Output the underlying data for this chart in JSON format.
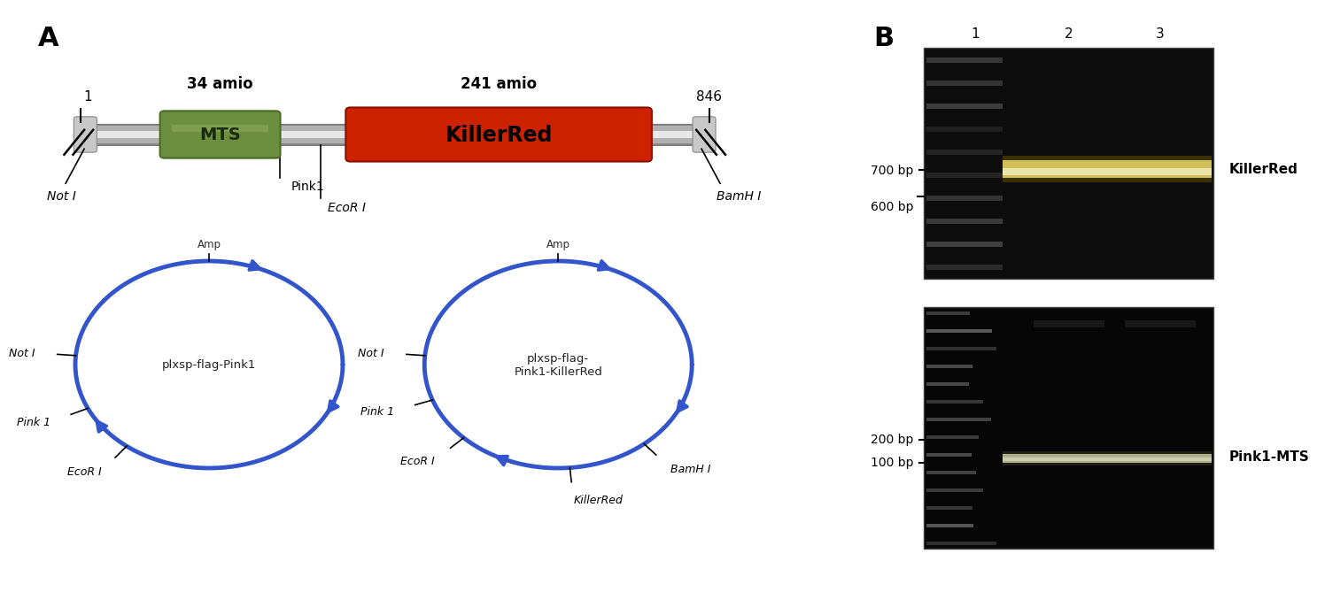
{
  "panel_A_label": "A",
  "panel_B_label": "B",
  "linear_diagram": {
    "MTS_label": "MTS",
    "KillerRed_label": "KillerRed",
    "MTS_color": "#6b8f3e",
    "MTS_edge_color": "#4a6b28",
    "KillerRed_color": "#cc2200",
    "KillerRed_edge_color": "#881100",
    "rod_color_light": "#e0e0e0",
    "rod_color_mid": "#ffffff",
    "rod_color_dark": "#aaaaaa"
  },
  "plasmid_left": {
    "label": "plxsp-flag-Pink1",
    "amp_label": "Amp",
    "sites": [
      "Not I",
      "Pink 1",
      "EcoR I"
    ],
    "site_angles_deg": [
      175,
      205,
      232
    ],
    "arrow_angles_deg": [
      65,
      330,
      210
    ],
    "color": "#3355cc"
  },
  "plasmid_right": {
    "label": "plxsp-flag-\nPink1-KillerRed",
    "amp_label": "Amp",
    "sites": [
      "Not I",
      "Pink 1",
      "EcoR I",
      "KillerRed",
      "BamH I"
    ],
    "site_angles_deg": [
      175,
      200,
      225,
      275,
      310
    ],
    "arrow_angles_deg": [
      65,
      330,
      240
    ],
    "color": "#3355cc"
  },
  "gel_top": {
    "label": "KillerRed",
    "band_label_700": "700 bp",
    "band_label_600": "600 bp",
    "lane_labels": [
      "1",
      "2",
      "3"
    ]
  },
  "gel_bottom": {
    "label": "Pink1-MTS",
    "band_label_200": "200 bp",
    "band_label_100": "100 bp",
    "lane_labels": [
      "1",
      "2",
      "3"
    ]
  },
  "background_color": "#ffffff"
}
